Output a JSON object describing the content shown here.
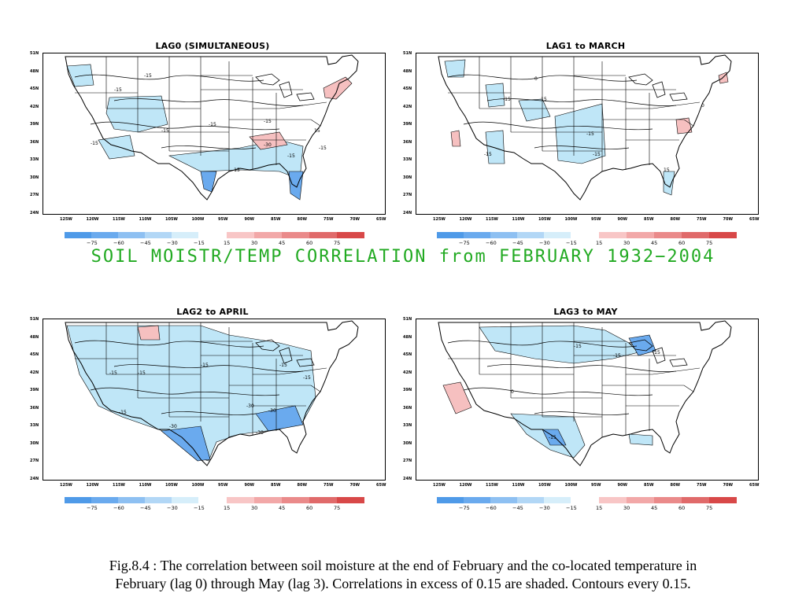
{
  "banner": "SOIL MOISTR/TEMP CORRELATION from FEBRUARY 1932−2004",
  "caption_line1": "Fig.8.4 : The correlation between soil moisture at the end of February and the co-located temperature in",
  "caption_line2": "February (lag 0) through May (lag 3). Correlations in excess of 0.15 are shaded. Contours every 0.15.",
  "y_labels": [
    "51N",
    "48N",
    "45N",
    "42N",
    "39N",
    "36N",
    "33N",
    "30N",
    "27N",
    "24N"
  ],
  "x_labels": [
    "125W",
    "120W",
    "115W",
    "110W",
    "105W",
    "100W",
    "95W",
    "90W",
    "85W",
    "80W",
    "75W",
    "70W",
    "65W"
  ],
  "legend": {
    "neg_colors": [
      "#4f9ae8",
      "#6aaaee",
      "#8ec0f2",
      "#b2d7f6",
      "#d6eefa"
    ],
    "pos_colors": [
      "#f8c6c6",
      "#f2a8a8",
      "#ea8a8a",
      "#e06a6a",
      "#d84848"
    ],
    "neg_ticks": [
      "−75",
      "−60",
      "−45",
      "−30",
      "−15"
    ],
    "pos_ticks": [
      "15",
      "30",
      "45",
      "60",
      "75"
    ]
  },
  "colors": {
    "neg_shade": "#bfe6f7",
    "neg_strong": "#6aaaee",
    "pos_shade": "#f6c0c0",
    "title_green": "#22aa22"
  },
  "panels": [
    {
      "title": "LAG0 (SIMULTANEOUS)",
      "contour_labels": [
        "-15",
        "-15",
        "-15",
        "-15",
        "-15",
        "-30",
        "-15",
        "-15",
        "-15",
        "-15",
        "15"
      ]
    },
    {
      "title": "LAG1 to MARCH",
      "contour_labels": [
        "0",
        "-15",
        "-15",
        "-15",
        "-15",
        "15",
        "-15",
        "0"
      ]
    },
    {
      "title": "LAG2 to APRIL",
      "contour_labels": [
        "-15",
        "-15",
        "-15",
        "-15",
        "-15",
        "-15",
        "-30",
        "-30",
        "-30",
        "-30"
      ]
    },
    {
      "title": "LAG3 to MAY",
      "contour_labels": [
        "-15",
        "-15",
        "-15",
        "0",
        "-15"
      ]
    }
  ]
}
